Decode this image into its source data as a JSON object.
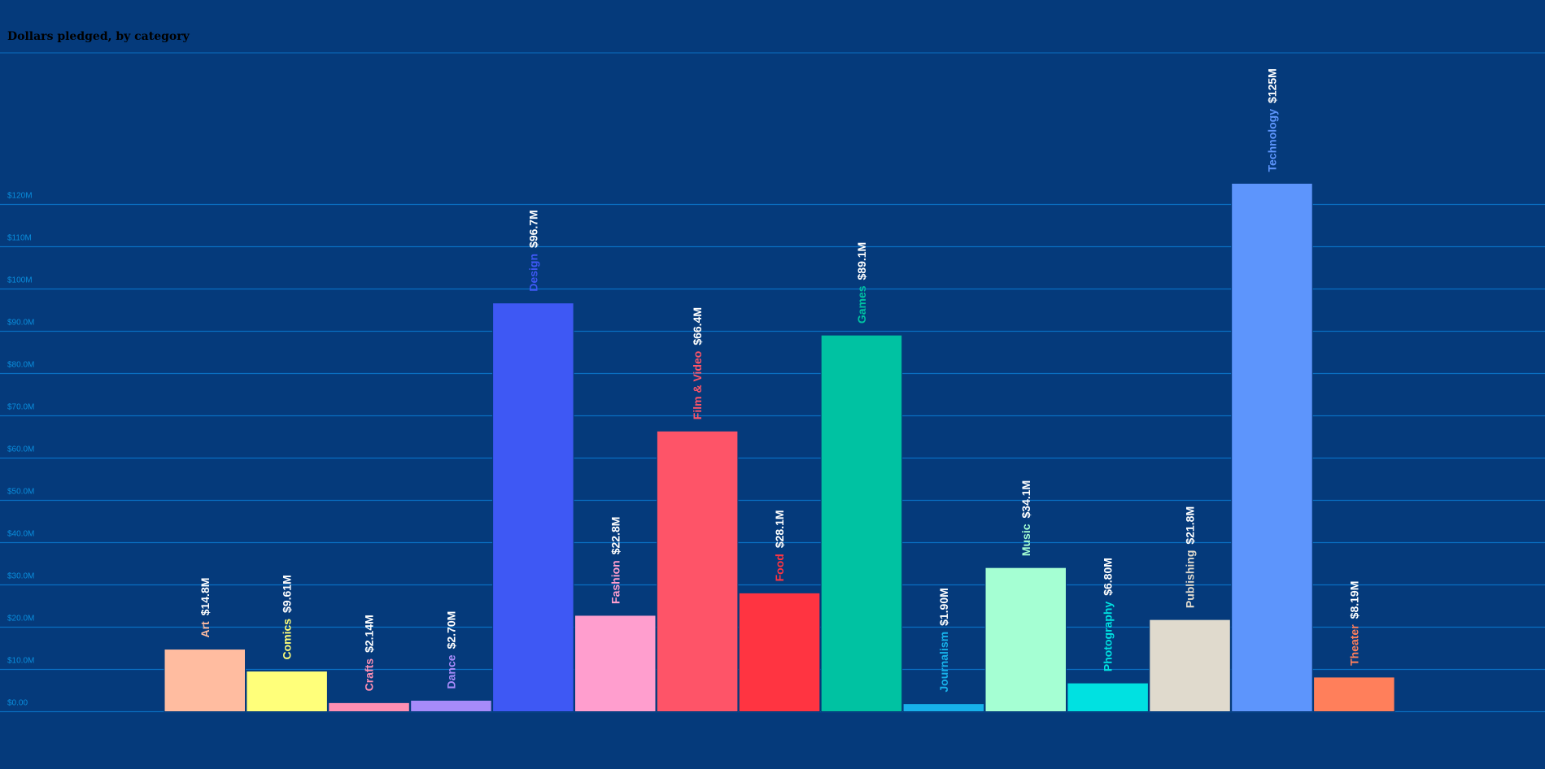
{
  "chart_data": {
    "type": "bar",
    "title": "Dollars pledged, by category",
    "xlabel": "",
    "ylabel": "",
    "ylim": [
      0,
      140
    ],
    "y_unit": "millions of US dollars",
    "y_ticks": [
      0,
      10,
      20,
      30,
      40,
      50,
      60,
      70,
      80,
      90,
      100,
      110,
      120
    ],
    "y_tick_labels": [
      "$0.00",
      "$10.0M",
      "$20.0M",
      "$30.0M",
      "$40.0M",
      "$50.0M",
      "$60.0M",
      "$70.0M",
      "$80.0M",
      "$90.0M",
      "$100M",
      "$110M",
      "$120M"
    ],
    "grid": true,
    "legend": "none",
    "categories": [
      "Art",
      "Comics",
      "Crafts",
      "Dance",
      "Design",
      "Fashion",
      "Film & Video",
      "Food",
      "Games",
      "Journalism",
      "Music",
      "Photography",
      "Publishing",
      "Technology",
      "Theater"
    ],
    "values": [
      14.8,
      9.61,
      2.14,
      2.7,
      96.7,
      22.8,
      66.4,
      28.1,
      89.1,
      1.9,
      34.1,
      6.8,
      21.8,
      125,
      8.19
    ],
    "value_labels": [
      "$14.8M",
      "$9.61M",
      "$2.14M",
      "$2.70M",
      "$96.7M",
      "$22.8M",
      "$66.4M",
      "$28.1M",
      "$89.1M",
      "$1.90M",
      "$34.1M",
      "$6.80M",
      "$21.8M",
      "$125M",
      "$8.19M"
    ],
    "bar_colors": [
      "#ffbca0",
      "#ffff7a",
      "#ff8fb3",
      "#a78bfa",
      "#3e58f4",
      "#ff9ece",
      "#fe5468",
      "#ff3441",
      "#00c2a2",
      "#17b1ea",
      "#a5ffd3",
      "#00e1e1",
      "#e0dacd",
      "#5d95fc",
      "#ff7f5b"
    ],
    "category_label_colors": [
      "#ffbca0",
      "#ffff7a",
      "#ff8fb3",
      "#a78bfa",
      "#3e58f4",
      "#ff9ece",
      "#fe5468",
      "#ff3441",
      "#00c2a2",
      "#17b1ea",
      "#a5ffd3",
      "#00e1e1",
      "#e0dacd",
      "#5d95fc",
      "#ff7f5b"
    ],
    "value_label_color": "#ffffff",
    "colors": {
      "background": "#053a7b",
      "gridline": "#0a6fc2",
      "title": "#0a8ddc",
      "tick_label": "#0a8ddc",
      "bar_outline": "#053a7b"
    }
  }
}
